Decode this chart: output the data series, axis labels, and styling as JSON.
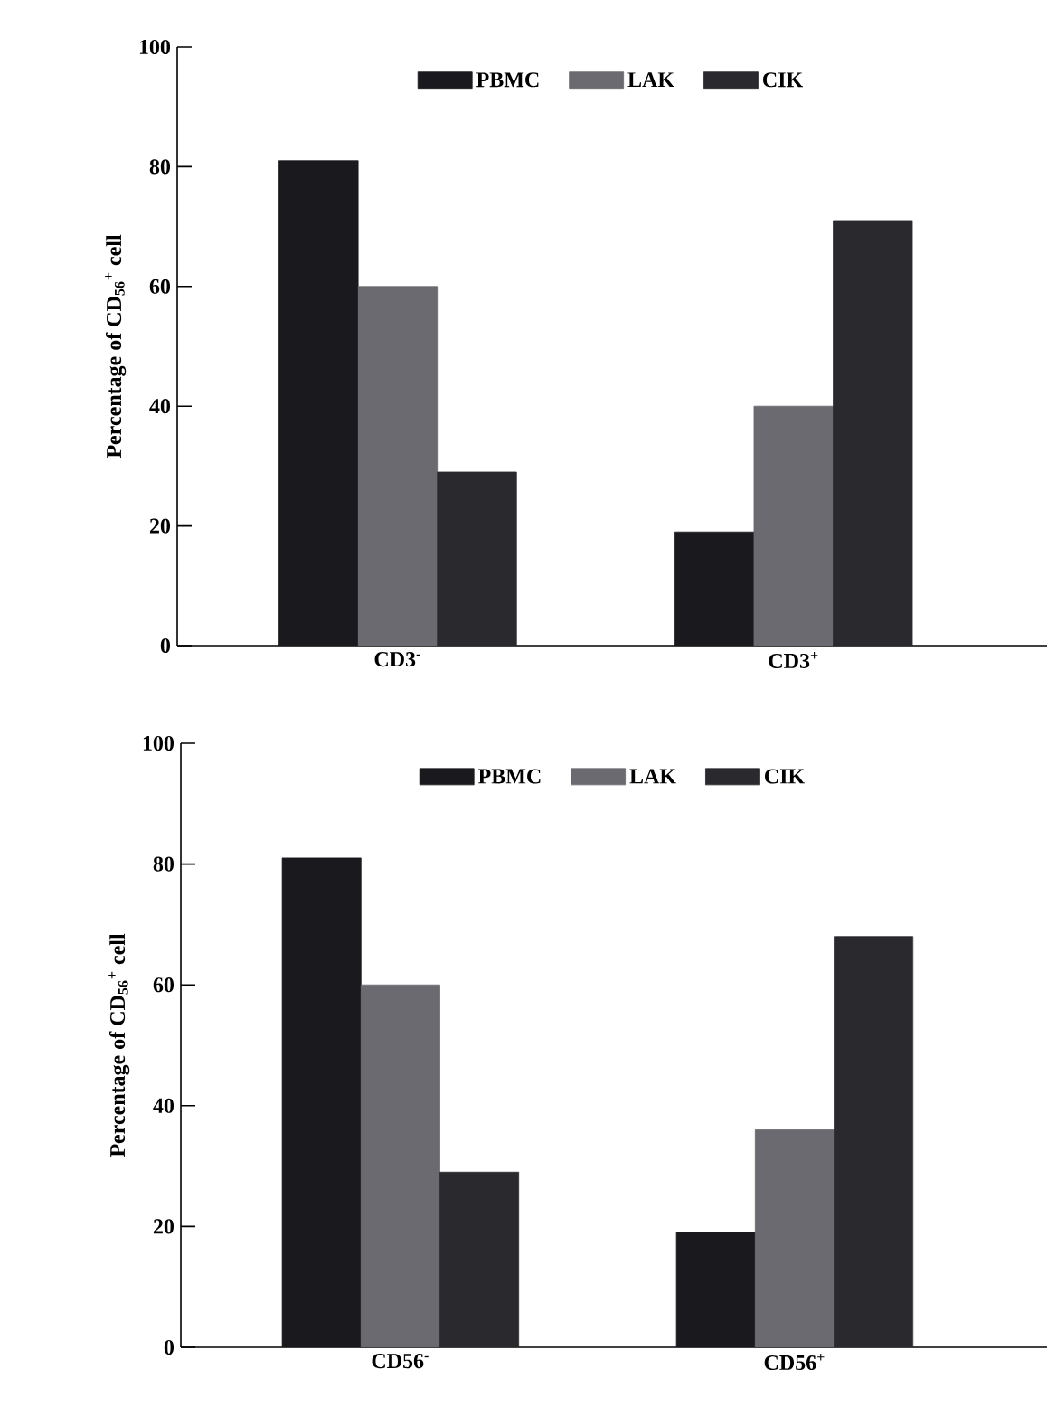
{
  "chart_data": [
    {
      "type": "bar",
      "categories": [
        "CD3$^{-}$",
        "CD3$^{+}$"
      ],
      "ylabel": "Percentage of CD$_{56}$$^{+}$ cell",
      "ylim": [
        0,
        100
      ],
      "yticks": [
        0,
        20,
        40,
        60,
        80,
        100
      ],
      "legend": "top",
      "series": [
        {
          "name": "PBMC",
          "color": "#1a1a1e",
          "values": [
            81,
            19
          ]
        },
        {
          "name": "LAK",
          "color": "#6a6a70",
          "values": [
            60,
            40
          ]
        },
        {
          "name": "CIK",
          "color": "#2a2a2e",
          "values": [
            29,
            71
          ]
        }
      ]
    },
    {
      "type": "bar",
      "categories": [
        "CD56$^{-}$",
        "CD56$^{+}$"
      ],
      "ylabel": "Percentage of CD$_{56}$$^{+}$ cell",
      "ylim": [
        0,
        100
      ],
      "yticks": [
        0,
        20,
        40,
        60,
        80,
        100
      ],
      "legend": "top",
      "series": [
        {
          "name": "PBMC",
          "color": "#1a1a1e",
          "values": [
            81,
            19
          ]
        },
        {
          "name": "LAK",
          "color": "#6a6a70",
          "values": [
            60,
            36
          ]
        },
        {
          "name": "CIK",
          "color": "#2a2a2e",
          "values": [
            29,
            68
          ]
        }
      ]
    }
  ]
}
